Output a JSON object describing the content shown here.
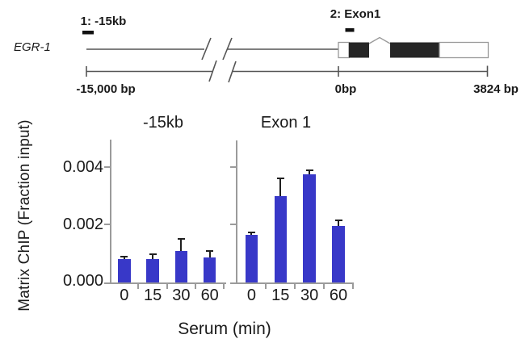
{
  "gene_diagram": {
    "gene_name": "EGR-1",
    "site1_label": "1: -15kb",
    "site2_label": "2: Exon1",
    "scale_left_label": "-15,000 bp",
    "scale_zero_label": "0bp",
    "scale_right_label": "3824 bp"
  },
  "chart_data": {
    "type": "bar",
    "title": "",
    "ylabel": "Matrix ChIP (Fraction input)",
    "xlabel": "Serum (min)",
    "categories": [
      "0",
      "15",
      "30",
      "60"
    ],
    "ytick_labels": [
      "0.000",
      "0.002",
      "0.004"
    ],
    "yticks": [
      0.0,
      0.002,
      0.004
    ],
    "ylim": [
      0,
      0.005
    ],
    "grid": "off",
    "bar_color": "#3838c8",
    "error_bar_color": "#1f1f1f",
    "panels": [
      {
        "title": "-15kb",
        "values": [
          0.0008,
          0.0008,
          0.0011,
          0.00087
        ],
        "errors": [
          0.0001,
          0.00017,
          0.00042,
          0.00022
        ]
      },
      {
        "title": "Exon 1",
        "values": [
          0.00166,
          0.003,
          0.00375,
          0.00195
        ],
        "errors": [
          8e-05,
          0.0006,
          0.00015,
          0.0002
        ]
      }
    ]
  }
}
